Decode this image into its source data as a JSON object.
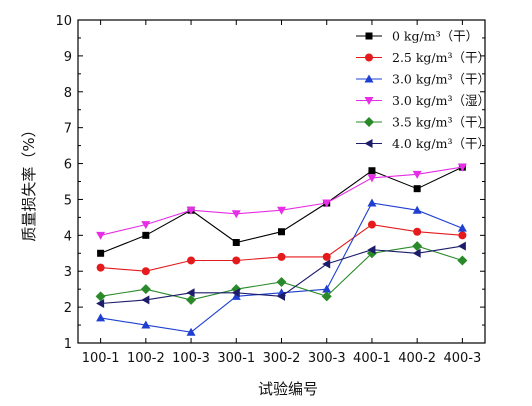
{
  "chart_data": {
    "type": "line",
    "xlabel": "试验编号",
    "ylabel": "质量损失率（%）",
    "categories": [
      "100-1",
      "100-2",
      "100-3",
      "300-1",
      "300-2",
      "300-3",
      "400-1",
      "400-2",
      "400-3"
    ],
    "ylim": [
      1,
      10
    ],
    "yticks": [
      1,
      2,
      3,
      4,
      5,
      6,
      7,
      8,
      9,
      10
    ],
    "grid": false,
    "legend_position": "top-right",
    "series": [
      {
        "name": "0  kg/m³（干）",
        "marker": "square",
        "color": "#000000",
        "values": [
          3.5,
          4.0,
          4.7,
          3.8,
          4.1,
          4.9,
          5.8,
          5.3,
          5.9
        ]
      },
      {
        "name": "2.5 kg/m³（干）",
        "marker": "circle",
        "color": "#e41a1c",
        "values": [
          3.1,
          3.0,
          3.3,
          3.3,
          3.4,
          3.4,
          4.3,
          4.1,
          4.0
        ]
      },
      {
        "name": "3.0 kg/m³（干）",
        "marker": "triangle-up",
        "color": "#1f3fd1",
        "values": [
          1.7,
          1.5,
          1.3,
          2.3,
          2.4,
          2.5,
          4.9,
          4.7,
          4.2
        ]
      },
      {
        "name": "3.0 kg/m³（湿）",
        "marker": "triangle-down",
        "color": "#e62ee6",
        "values": [
          4.0,
          4.3,
          4.7,
          4.6,
          4.7,
          4.9,
          5.6,
          5.7,
          5.9
        ]
      },
      {
        "name": "3.5 kg/m³（干）",
        "marker": "diamond",
        "color": "#2a8a2a",
        "values": [
          2.3,
          2.5,
          2.2,
          2.5,
          2.7,
          2.3,
          3.5,
          3.7,
          3.3
        ]
      },
      {
        "name": "4.0 kg/m³（干）",
        "marker": "triangle-left",
        "color": "#1c1c6b",
        "values": [
          2.1,
          2.2,
          2.4,
          2.4,
          2.3,
          3.2,
          3.6,
          3.5,
          3.7
        ]
      }
    ]
  }
}
